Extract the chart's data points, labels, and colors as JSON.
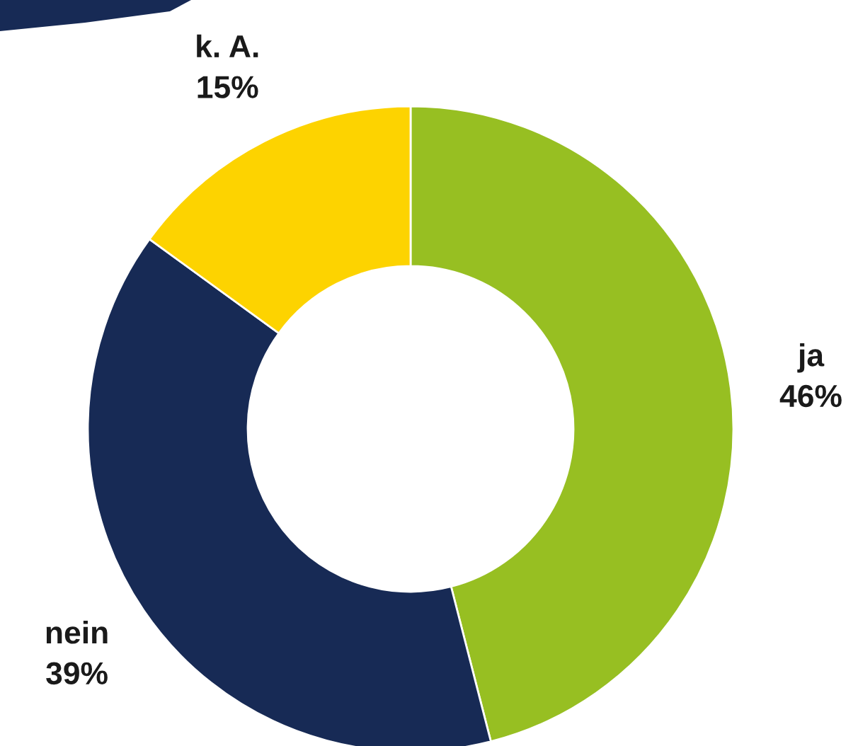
{
  "chart_data": {
    "type": "donut",
    "categories": [
      "ja",
      "nein",
      "k. A."
    ],
    "values": [
      46,
      39,
      15
    ],
    "value_labels": [
      "46%",
      "39%",
      "15%"
    ],
    "colors": [
      "#97bf22",
      "#172a55",
      "#fdd300"
    ],
    "legend": false
  }
}
